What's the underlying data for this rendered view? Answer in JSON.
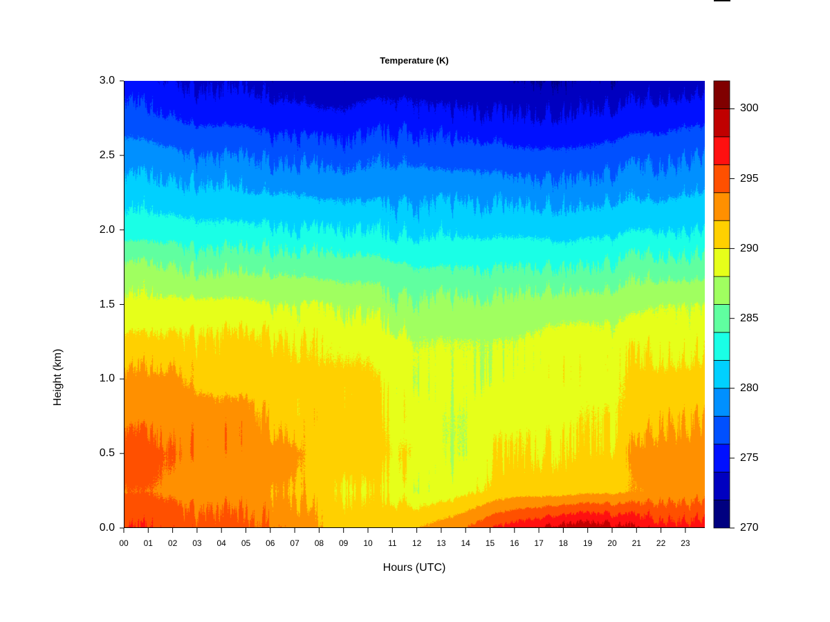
{
  "chart_data": {
    "type": "heatmap",
    "subtype": "filled-contour",
    "title": "Temperature (K)",
    "xlabel": "Hours (UTC)",
    "ylabel": "Height (km)",
    "xlim": [
      0,
      23.8
    ],
    "ylim": [
      0,
      3.0
    ],
    "x_tick_labels": [
      "00",
      "01",
      "02",
      "03",
      "04",
      "05",
      "06",
      "07",
      "08",
      "09",
      "10",
      "11",
      "12",
      "13",
      "14",
      "15",
      "16",
      "17",
      "18",
      "19",
      "20",
      "21",
      "22",
      "23"
    ],
    "y_tick_labels": [
      "0.0",
      "0.5",
      "1.0",
      "1.5",
      "2.0",
      "2.5",
      "3.0"
    ],
    "hours": [
      0,
      1,
      2,
      3,
      4,
      5,
      6,
      7,
      8,
      9,
      10,
      11,
      12,
      13,
      14,
      15,
      16,
      17,
      18,
      19,
      20,
      21,
      22,
      23
    ],
    "heights_km": [
      0,
      0.25,
      0.5,
      0.75,
      1.0,
      1.25,
      1.5,
      1.75,
      2.0,
      2.25,
      2.5,
      2.75,
      3.0
    ],
    "temperature_K": [
      [
        296,
        296,
        295.5,
        295,
        295,
        294.5,
        294,
        293.5,
        292,
        291,
        291,
        291.5,
        292,
        293,
        294,
        296,
        297,
        298,
        299,
        299.5,
        299,
        298,
        297,
        297
      ],
      [
        294,
        294,
        293.5,
        293,
        293,
        293,
        292.5,
        292,
        290.5,
        290,
        290,
        289.5,
        288.5,
        288.5,
        289.5,
        290.5,
        291,
        291,
        291,
        291.5,
        291.5,
        292,
        293,
        293
      ],
      [
        295,
        295,
        294,
        293.5,
        293.5,
        293.5,
        293,
        292.5,
        291,
        291,
        291,
        290,
        290,
        288,
        288,
        290,
        290,
        290,
        290,
        290.5,
        290.5,
        292.5,
        293,
        293
      ],
      [
        293.5,
        293.5,
        293,
        293,
        293,
        293,
        291.5,
        291,
        291,
        291,
        291,
        289.5,
        289.5,
        288,
        288,
        289.5,
        289.5,
        289.5,
        289.5,
        290,
        290,
        290.5,
        292,
        292
      ],
      [
        292.5,
        292.5,
        292.5,
        291.5,
        291,
        291,
        291,
        290.5,
        290.5,
        290.5,
        290.5,
        289,
        288.5,
        288.5,
        288.5,
        288.5,
        288.5,
        289,
        289.5,
        289.5,
        289.5,
        290.5,
        290.5,
        290.5
      ],
      [
        290.5,
        290.5,
        290.5,
        290.5,
        290.5,
        290.5,
        290.5,
        290,
        289.5,
        289.5,
        289.5,
        288.5,
        288,
        288,
        288,
        288,
        288,
        288.5,
        289,
        289,
        289,
        289.5,
        289.5,
        289.5
      ],
      [
        288.5,
        288.5,
        288.5,
        288.5,
        288.5,
        288.5,
        288,
        288,
        288,
        287.5,
        287.5,
        286.5,
        286.5,
        286.5,
        286.5,
        286.5,
        286.5,
        287,
        287,
        287,
        287,
        287.5,
        288,
        288
      ],
      [
        286.5,
        286.5,
        286,
        285.5,
        285.5,
        285.5,
        285.5,
        285.5,
        285,
        285,
        285,
        284.5,
        284,
        284,
        284,
        284,
        284,
        284,
        284,
        284,
        284.5,
        285,
        285,
        285
      ],
      [
        283,
        283,
        283,
        282.5,
        282.5,
        282.5,
        282.5,
        282,
        282,
        282,
        282,
        281.5,
        281.5,
        281.5,
        281.5,
        281.5,
        281.5,
        281.5,
        281,
        281.5,
        281.5,
        282,
        282,
        282
      ],
      [
        281,
        281,
        280.5,
        280.5,
        280.5,
        280,
        280,
        280,
        279.5,
        279.5,
        279.5,
        279.5,
        279.5,
        279.5,
        279.5,
        279.5,
        279,
        279,
        279,
        279,
        279.5,
        279.5,
        279.5,
        280
      ],
      [
        279,
        279,
        278.5,
        278,
        278,
        278,
        277.5,
        277.5,
        277,
        277,
        277.5,
        277.5,
        277.5,
        277,
        277,
        277,
        276.5,
        276.5,
        276.5,
        276.5,
        277,
        277.5,
        277.5,
        278
      ],
      [
        277,
        276.5,
        276,
        275.5,
        275.5,
        275.5,
        275,
        275,
        274.5,
        274.5,
        275,
        275,
        275,
        274.5,
        274.5,
        274.5,
        274,
        274,
        274,
        274.5,
        274.5,
        275,
        275,
        275.5
      ],
      [
        275,
        274.5,
        274,
        273.5,
        273.5,
        273.5,
        273,
        273,
        272.5,
        272.5,
        273,
        273,
        273,
        272.5,
        272.5,
        272.5,
        272,
        272,
        272,
        272.5,
        272.5,
        272.5,
        273,
        273
      ]
    ],
    "colorbar": {
      "range": [
        270,
        302
      ],
      "step": 2,
      "tick_labels": [
        "270",
        "275",
        "280",
        "285",
        "290",
        "295",
        "300"
      ],
      "colors": [
        "#000080",
        "#0000C0",
        "#0010FF",
        "#0050FF",
        "#0090FF",
        "#00D0FF",
        "#1AFFE6",
        "#60FFA0",
        "#A0FF60",
        "#E6FF1A",
        "#FFD000",
        "#FF9000",
        "#FF5000",
        "#FF1010",
        "#C00000",
        "#800000"
      ]
    },
    "grid": false,
    "legend": "right colorbar"
  }
}
